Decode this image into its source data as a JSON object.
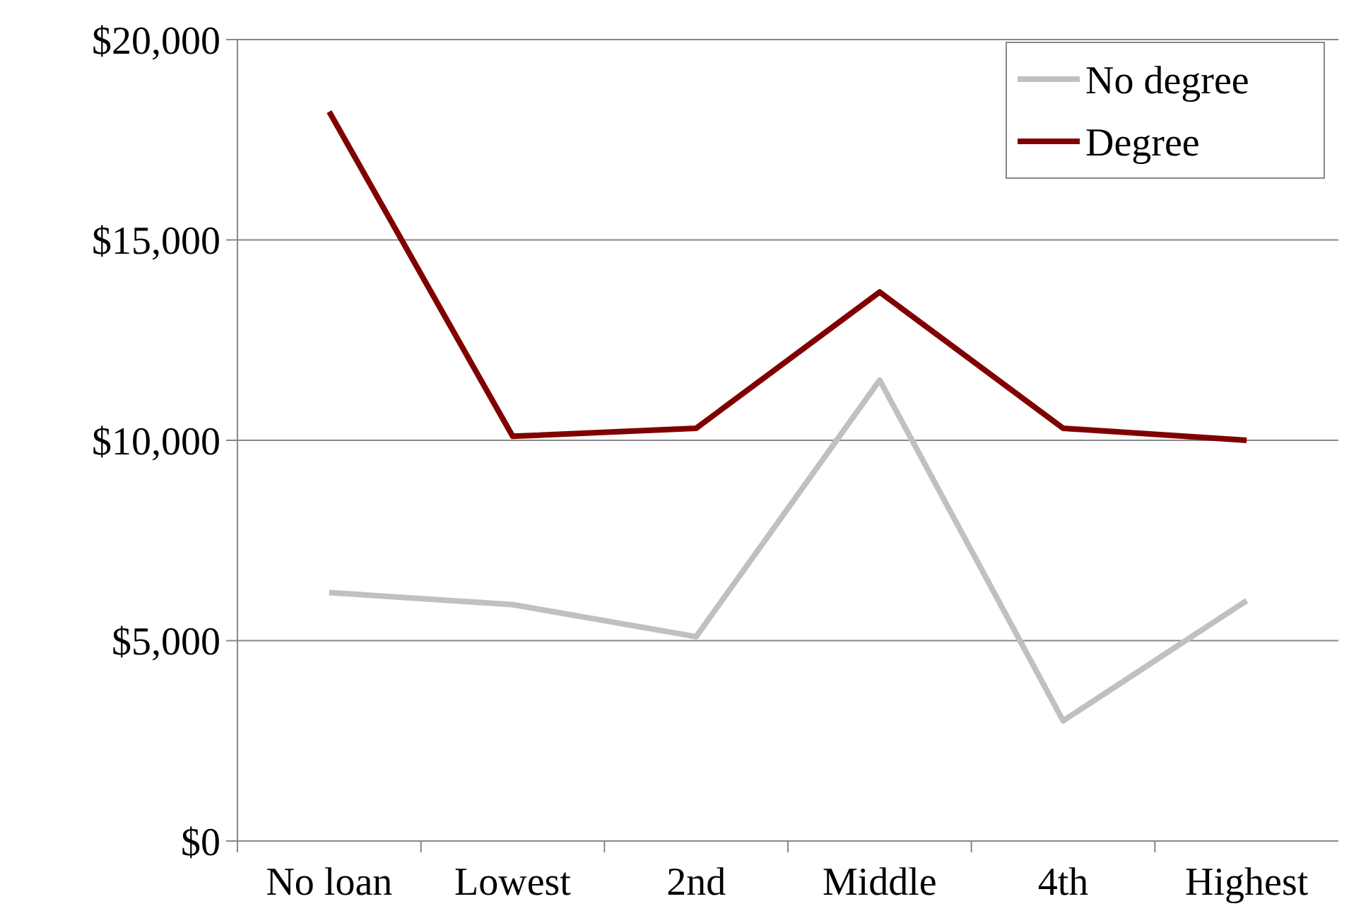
{
  "chart_data": {
    "type": "line",
    "categories": [
      "No loan",
      "Lowest",
      "2nd",
      "Middle",
      "4th",
      "Highest"
    ],
    "series": [
      {
        "name": "No degree",
        "color": "#c0c0c0",
        "values": [
          6200,
          5900,
          5100,
          11500,
          3000,
          6000
        ]
      },
      {
        "name": "Degree",
        "color": "#800000",
        "values": [
          18200,
          10100,
          10300,
          13700,
          10300,
          10000
        ]
      }
    ],
    "ylim": [
      0,
      20000
    ],
    "yticks": [
      {
        "value": 0,
        "label": "$0"
      },
      {
        "value": 5000,
        "label": "$5,000"
      },
      {
        "value": 10000,
        "label": "$10,000"
      },
      {
        "value": 15000,
        "label": "$15,000"
      },
      {
        "value": 20000,
        "label": "$20,000"
      }
    ],
    "grid": "y",
    "legend": "top right",
    "marker": "none",
    "line_style": "solid"
  }
}
